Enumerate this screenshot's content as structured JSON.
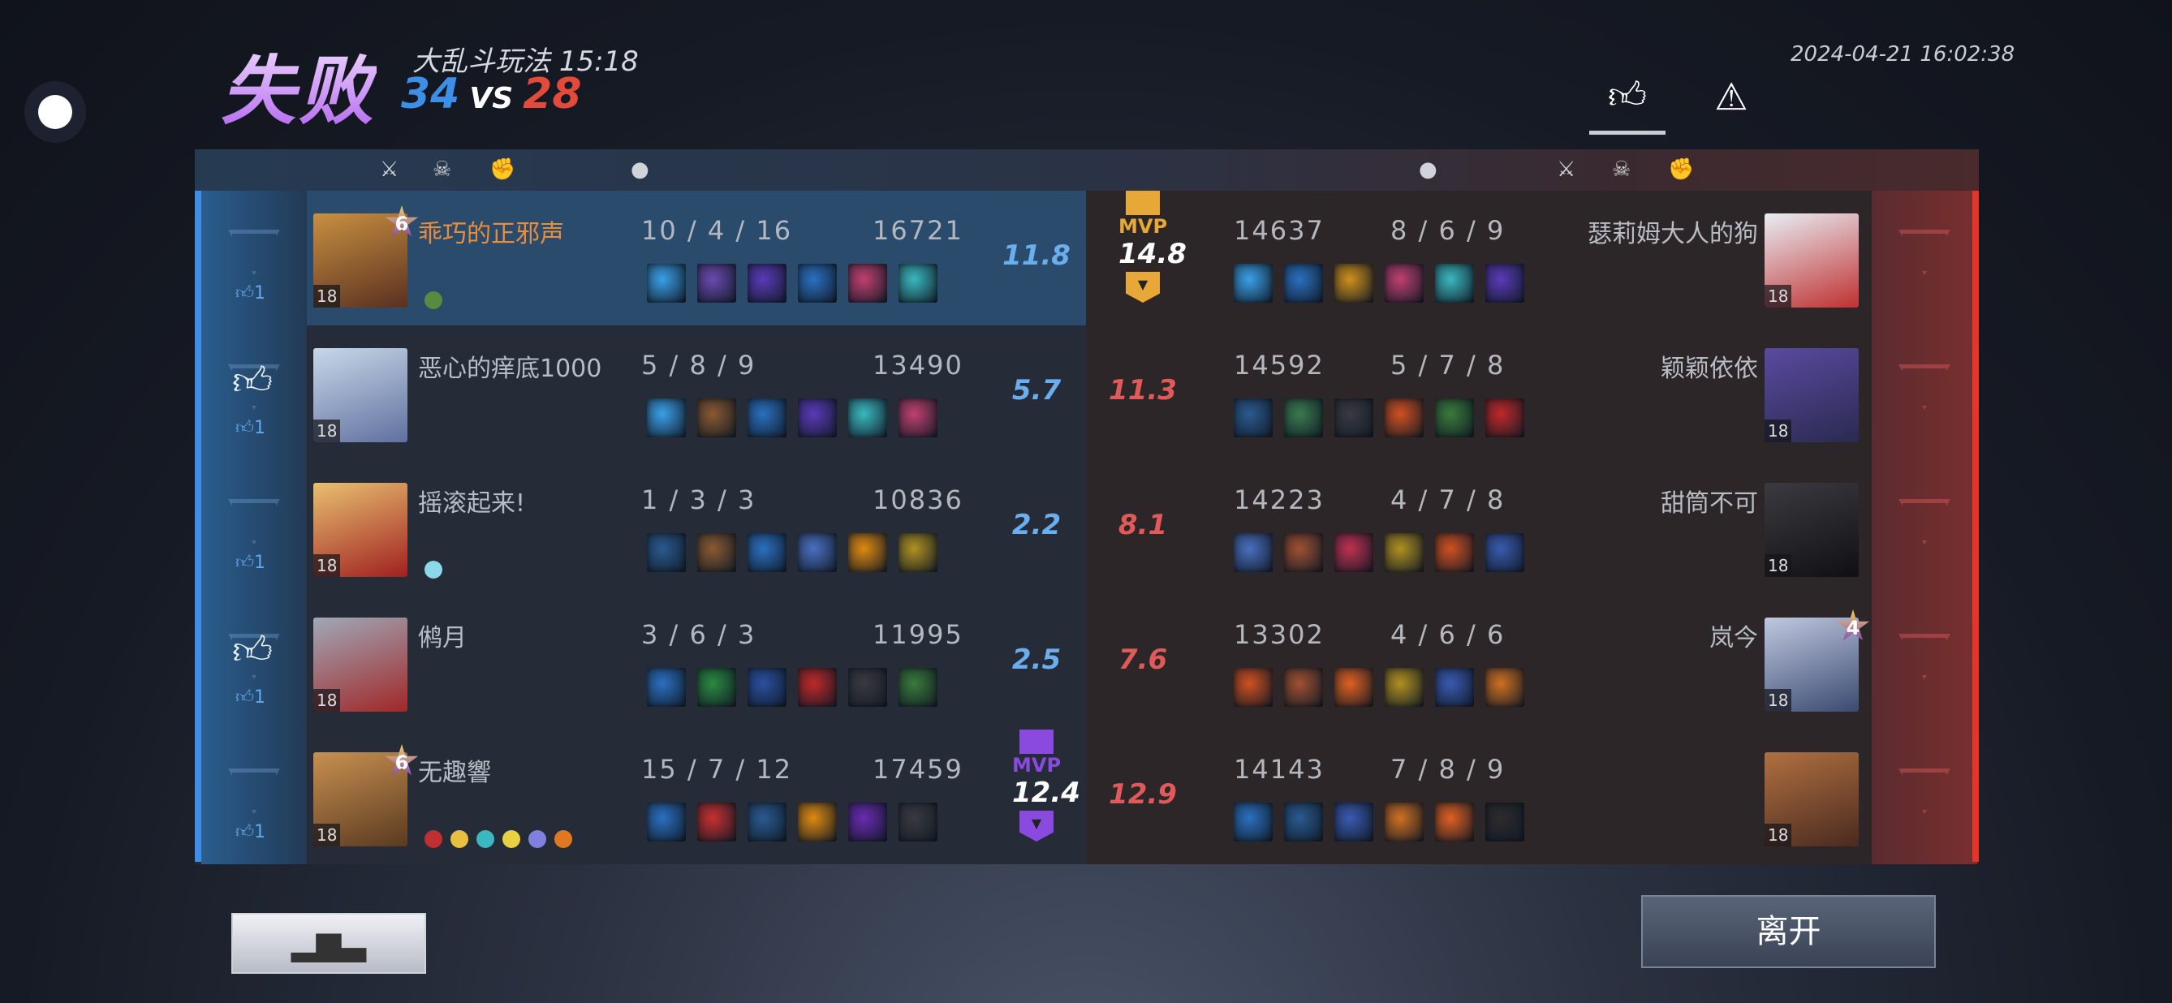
{
  "header": {
    "result": "失败",
    "mode": "大乱斗玩法",
    "duration": "15:18",
    "score_blue": "34",
    "vs": "VS",
    "score_red": "28",
    "datetime": "2024-04-21 16:02:38"
  },
  "tabs": {
    "like_icon": "thumbs-up-icon",
    "report_icon": "warning-icon"
  },
  "columns": {
    "left": [
      "kills-icon",
      "deaths-icon",
      "assists-icon",
      "gold-icon"
    ],
    "right": [
      "gold-icon",
      "kills-icon",
      "deaths-icon",
      "assists-icon"
    ]
  },
  "colors": {
    "blue": "#3d8ee6",
    "red": "#e34a3a",
    "mvp_gold": "#e8a838",
    "mvp_purple": "#8a4ae0",
    "self_name": "#e88d3c"
  },
  "blue_team": [
    {
      "name": "乖巧的正邪声",
      "level": "18",
      "star": "6",
      "kda": "10 / 4 / 16",
      "gold": "16721",
      "rating": "11.8",
      "likes": "1",
      "self": true,
      "avatar": [
        "#c89040",
        "#5a3020"
      ],
      "items": [
        "#3aa0e8",
        "#6a4ab0",
        "#5a3ab8",
        "#2a70c0",
        "#c04070",
        "#3ab8c0"
      ],
      "badges": [
        "#5a8a40"
      ]
    },
    {
      "name": "恶心的痒底1000",
      "level": "18",
      "kda": "5 / 8 / 9",
      "gold": "13490",
      "rating": "5.7",
      "likes": "1",
      "liked": true,
      "avatar": [
        "#c8d8e8",
        "#6070a0"
      ],
      "items": [
        "#3aa0e8",
        "#8a5a30",
        "#2a70c0",
        "#5a3ab8",
        "#3ab8c0",
        "#c04070"
      ],
      "badges": []
    },
    {
      "name": "摇滚起来!",
      "level": "18",
      "kda": "1 / 3 / 3",
      "gold": "10836",
      "rating": "2.2",
      "likes": "1",
      "avatar": [
        "#e8c070",
        "#a02020"
      ],
      "items": [
        "#2a5a90",
        "#8a5a30",
        "#2a70c0",
        "#4a70c0",
        "#e08a10",
        "#b09020"
      ],
      "badges": [
        "#8ad8e8"
      ]
    },
    {
      "name": "鸺月",
      "level": "18",
      "kda": "3 / 6 / 3",
      "gold": "11995",
      "rating": "2.5",
      "likes": "1",
      "liked": true,
      "avatar": [
        "#a0a8b8",
        "#a02828"
      ],
      "items": [
        "#2a70c0",
        "#2a8a40",
        "#2a50a0",
        "#c02828",
        "#3a3a40",
        "#3a7a3a"
      ],
      "badges": []
    },
    {
      "name": "无趣響",
      "level": "18",
      "star": "6",
      "kda": "15 / 7 / 12",
      "gold": "17459",
      "rating": "12.4",
      "mvp": "MVP",
      "likes": "1",
      "avatar": [
        "#c89050",
        "#5a3a20"
      ],
      "items": [
        "#2a70c0",
        "#c83030",
        "#2a5a90",
        "#e08a10",
        "#6a2ab0",
        "#3a3a40"
      ],
      "badges": [
        "#c03030",
        "#e8c040",
        "#3ab8c0",
        "#e8d040",
        "#8080e0",
        "#e07820"
      ]
    }
  ],
  "red_team": [
    {
      "name": "瑟莉姆大人的狗",
      "level": "18",
      "kda": "8 / 6 / 9",
      "gold": "14637",
      "rating": "14.8",
      "mvp": "MVP",
      "avatar": [
        "#e8eef4",
        "#c03030"
      ],
      "items": [
        "#3aa0e8",
        "#2a70c0",
        "#d0901a",
        "#c04070",
        "#3ab8c0",
        "#5a3ab8"
      ]
    },
    {
      "name": "颖颖依依",
      "level": "18",
      "kda": "5 / 7 / 8",
      "gold": "14592",
      "rating": "11.3",
      "avatar": [
        "#5a4aa0",
        "#2a2a50"
      ],
      "items": [
        "#2a5a90",
        "#3a7a50",
        "#3a3a40",
        "#d05020",
        "#3a7a3a",
        "#c02828"
      ]
    },
    {
      "name": "甜筒不可",
      "level": "18",
      "kda": "4 / 7 / 8",
      "gold": "14223",
      "rating": "8.1",
      "avatar": [
        "#3a3a40",
        "#101014"
      ],
      "items": [
        "#4a70c0",
        "#a05030",
        "#c03050",
        "#b09020",
        "#d05020",
        "#3a5ab0"
      ]
    },
    {
      "name": "岚今",
      "level": "18",
      "star": "4",
      "kda": "4 / 6 / 6",
      "gold": "13302",
      "rating": "7.6",
      "avatar": [
        "#c0c8e0",
        "#3a4a70"
      ],
      "items": [
        "#d05020",
        "#a05030",
        "#e06020",
        "#b09020",
        "#3a5ab0",
        "#d07020"
      ]
    },
    {
      "name": "",
      "level": "18",
      "kda": "7 / 8 / 9",
      "gold": "14143",
      "rating": "12.9",
      "avatar": [
        "#b07040",
        "#4a2a20"
      ],
      "items": [
        "#2a70c0",
        "#2a5a90",
        "#3a5ab0",
        "#d07020",
        "#e06020",
        "#2e2a2c"
      ]
    }
  ],
  "buttons": {
    "stats_icon": "bar-chart-icon",
    "stats_glyph": "▂▆▃",
    "leave": "离开"
  }
}
